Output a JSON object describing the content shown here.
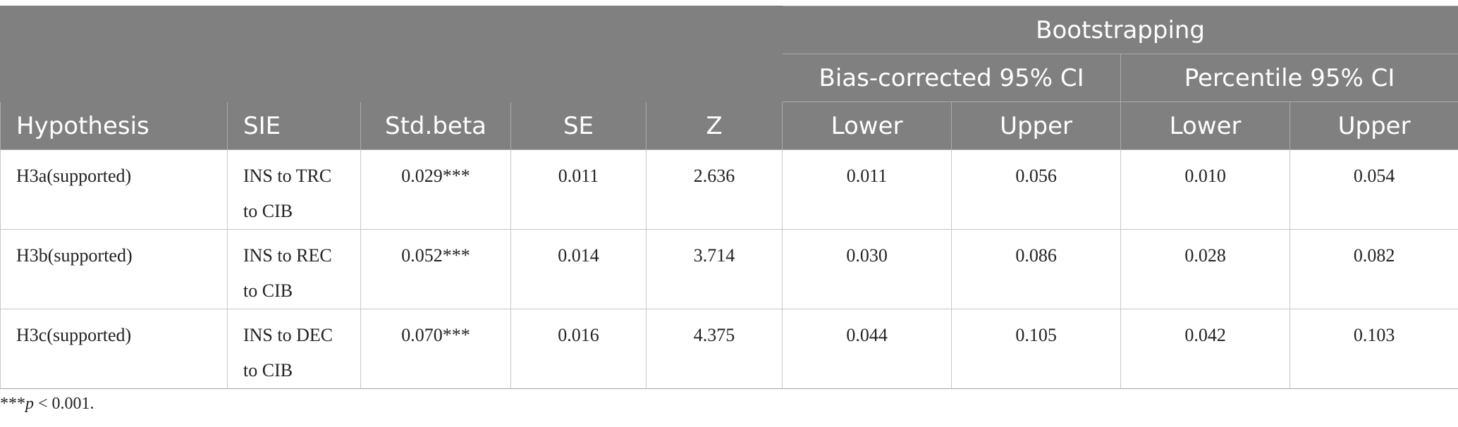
{
  "header": {
    "group_label": "Bootstrapping",
    "subgroups": [
      "Bias-corrected 95% CI",
      "Percentile 95% CI"
    ],
    "columns": [
      "Hypothesis",
      "SIE",
      "Std.beta",
      "SE",
      "Z",
      "Lower",
      "Upper",
      "Lower",
      "Upper"
    ]
  },
  "rows": [
    {
      "hypothesis": "H3a(supported)",
      "sie_line1": "INS to TRC",
      "sie_line2": "to CIB",
      "std_beta": "0.029***",
      "se": "0.011",
      "z": "2.636",
      "bc_lower": "0.011",
      "bc_upper": "0.056",
      "pc_lower": "0.010",
      "pc_upper": "0.054"
    },
    {
      "hypothesis": "H3b(supported)",
      "sie_line1": "INS to REC",
      "sie_line2": "to CIB",
      "std_beta": "0.052***",
      "se": "0.014",
      "z": "3.714",
      "bc_lower": "0.030",
      "bc_upper": "0.086",
      "pc_lower": "0.028",
      "pc_upper": "0.082"
    },
    {
      "hypothesis": "H3c(supported)",
      "sie_line1": "INS to DEC",
      "sie_line2": "to CIB",
      "std_beta": "0.070***",
      "se": "0.016",
      "z": "4.375",
      "bc_lower": "0.044",
      "bc_upper": "0.105",
      "pc_lower": "0.042",
      "pc_upper": "0.103"
    }
  ],
  "footnote": {
    "stars": "***",
    "p": "p",
    "rest": " < 0.001."
  }
}
